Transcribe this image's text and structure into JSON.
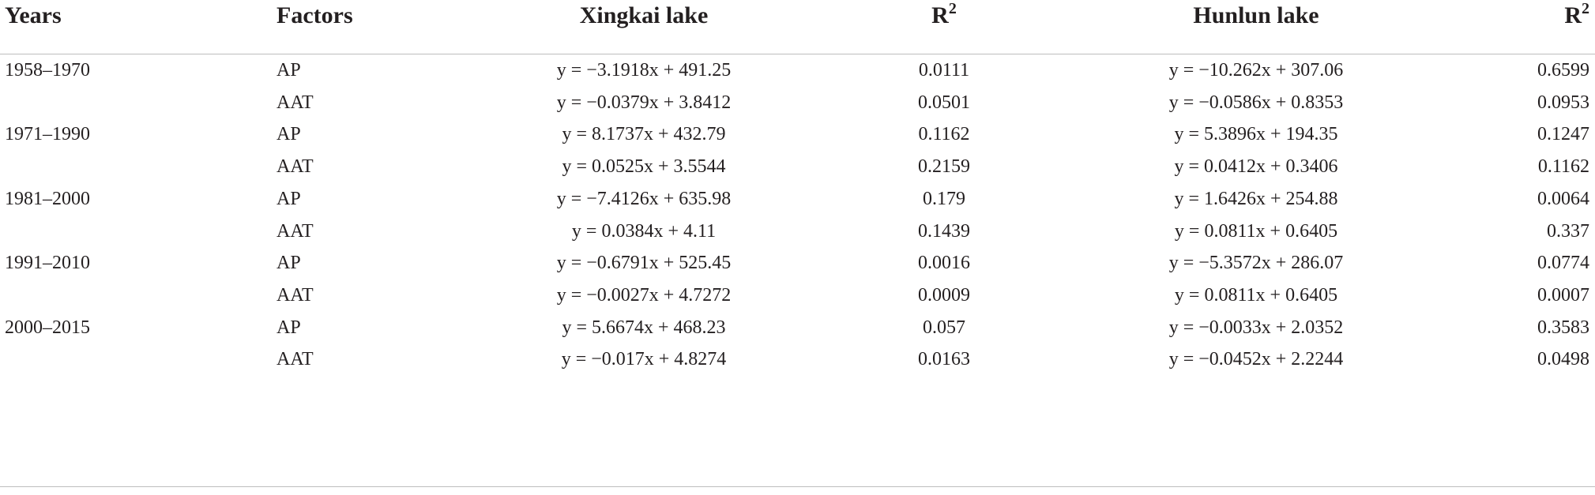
{
  "table": {
    "header": [
      "Years",
      "Factors",
      "Xingkai lake",
      {
        "text": "R",
        "sup": "2"
      },
      "Hunlun lake",
      {
        "text": "R",
        "sup": "2"
      }
    ],
    "groups": [
      {
        "years": "1958–1970",
        "rows": [
          [
            "AP",
            "y = −3.1918x + 491.25",
            "0.0111",
            "y = −10.262x + 307.06",
            "0.6599"
          ],
          [
            "AAT",
            "y = −0.0379x + 3.8412",
            "0.0501",
            "y = −0.0586x + 0.8353",
            "0.0953"
          ]
        ]
      },
      {
        "years": "1971–1990",
        "rows": [
          [
            "AP",
            "y = 8.1737x + 432.79",
            "0.1162",
            "y = 5.3896x + 194.35",
            "0.1247"
          ],
          [
            "AAT",
            "y = 0.0525x + 3.5544",
            "0.2159",
            "y = 0.0412x + 0.3406",
            "0.1162"
          ]
        ]
      },
      {
        "years": "1981–2000",
        "rows": [
          [
            "AP",
            "y = −7.4126x + 635.98",
            "0.179",
            "y = 1.6426x + 254.88",
            "0.0064"
          ],
          [
            "AAT",
            "y = 0.0384x + 4.11",
            "0.1439",
            "y = 0.0811x + 0.6405",
            "0.337"
          ]
        ]
      },
      {
        "years": "1991–2010",
        "rows": [
          [
            "AP",
            "y = −0.6791x + 525.45",
            "0.0016",
            "y = −5.3572x + 286.07",
            "0.0774"
          ],
          [
            "AAT",
            "y = −0.0027x + 4.7272",
            "0.0009",
            "y = 0.0811x + 0.6405",
            "0.0007"
          ]
        ]
      },
      {
        "years": "2000–2015",
        "rows": [
          [
            "AP",
            "y = 5.6674x + 468.23",
            "0.057",
            "y = −0.0033x + 2.0352",
            "0.3583"
          ],
          [
            "AAT",
            "y = −0.017x + 4.8274",
            "0.0163",
            "y = −0.0452x + 2.2244",
            "0.0498"
          ]
        ]
      }
    ]
  }
}
